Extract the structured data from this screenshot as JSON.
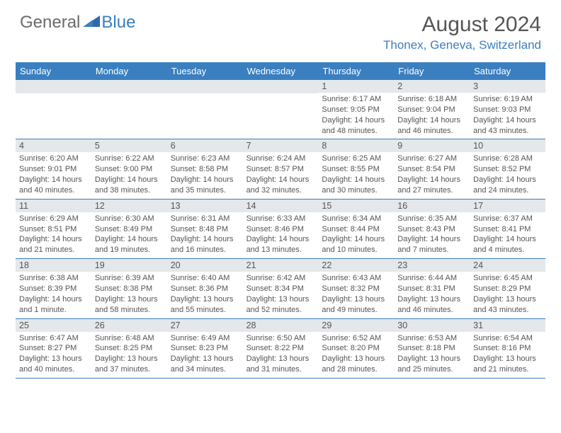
{
  "logo": {
    "general": "General",
    "blue": "Blue"
  },
  "header": {
    "month": "August 2024",
    "location": "Thonex, Geneva, Switzerland"
  },
  "weekdays": [
    "Sunday",
    "Monday",
    "Tuesday",
    "Wednesday",
    "Thursday",
    "Friday",
    "Saturday"
  ],
  "colors": {
    "accent": "#3a7fc0",
    "daynum_bg": "#e4e8eb",
    "text": "#555555",
    "logo_gray": "#6b6b6b"
  },
  "weeks": [
    [
      null,
      null,
      null,
      null,
      {
        "n": "1",
        "sr": "6:17 AM",
        "ss": "9:05 PM",
        "dl": "14 hours and 48 minutes."
      },
      {
        "n": "2",
        "sr": "6:18 AM",
        "ss": "9:04 PM",
        "dl": "14 hours and 46 minutes."
      },
      {
        "n": "3",
        "sr": "6:19 AM",
        "ss": "9:03 PM",
        "dl": "14 hours and 43 minutes."
      }
    ],
    [
      {
        "n": "4",
        "sr": "6:20 AM",
        "ss": "9:01 PM",
        "dl": "14 hours and 40 minutes."
      },
      {
        "n": "5",
        "sr": "6:22 AM",
        "ss": "9:00 PM",
        "dl": "14 hours and 38 minutes."
      },
      {
        "n": "6",
        "sr": "6:23 AM",
        "ss": "8:58 PM",
        "dl": "14 hours and 35 minutes."
      },
      {
        "n": "7",
        "sr": "6:24 AM",
        "ss": "8:57 PM",
        "dl": "14 hours and 32 minutes."
      },
      {
        "n": "8",
        "sr": "6:25 AM",
        "ss": "8:55 PM",
        "dl": "14 hours and 30 minutes."
      },
      {
        "n": "9",
        "sr": "6:27 AM",
        "ss": "8:54 PM",
        "dl": "14 hours and 27 minutes."
      },
      {
        "n": "10",
        "sr": "6:28 AM",
        "ss": "8:52 PM",
        "dl": "14 hours and 24 minutes."
      }
    ],
    [
      {
        "n": "11",
        "sr": "6:29 AM",
        "ss": "8:51 PM",
        "dl": "14 hours and 21 minutes."
      },
      {
        "n": "12",
        "sr": "6:30 AM",
        "ss": "8:49 PM",
        "dl": "14 hours and 19 minutes."
      },
      {
        "n": "13",
        "sr": "6:31 AM",
        "ss": "8:48 PM",
        "dl": "14 hours and 16 minutes."
      },
      {
        "n": "14",
        "sr": "6:33 AM",
        "ss": "8:46 PM",
        "dl": "14 hours and 13 minutes."
      },
      {
        "n": "15",
        "sr": "6:34 AM",
        "ss": "8:44 PM",
        "dl": "14 hours and 10 minutes."
      },
      {
        "n": "16",
        "sr": "6:35 AM",
        "ss": "8:43 PM",
        "dl": "14 hours and 7 minutes."
      },
      {
        "n": "17",
        "sr": "6:37 AM",
        "ss": "8:41 PM",
        "dl": "14 hours and 4 minutes."
      }
    ],
    [
      {
        "n": "18",
        "sr": "6:38 AM",
        "ss": "8:39 PM",
        "dl": "14 hours and 1 minute."
      },
      {
        "n": "19",
        "sr": "6:39 AM",
        "ss": "8:38 PM",
        "dl": "13 hours and 58 minutes."
      },
      {
        "n": "20",
        "sr": "6:40 AM",
        "ss": "8:36 PM",
        "dl": "13 hours and 55 minutes."
      },
      {
        "n": "21",
        "sr": "6:42 AM",
        "ss": "8:34 PM",
        "dl": "13 hours and 52 minutes."
      },
      {
        "n": "22",
        "sr": "6:43 AM",
        "ss": "8:32 PM",
        "dl": "13 hours and 49 minutes."
      },
      {
        "n": "23",
        "sr": "6:44 AM",
        "ss": "8:31 PM",
        "dl": "13 hours and 46 minutes."
      },
      {
        "n": "24",
        "sr": "6:45 AM",
        "ss": "8:29 PM",
        "dl": "13 hours and 43 minutes."
      }
    ],
    [
      {
        "n": "25",
        "sr": "6:47 AM",
        "ss": "8:27 PM",
        "dl": "13 hours and 40 minutes."
      },
      {
        "n": "26",
        "sr": "6:48 AM",
        "ss": "8:25 PM",
        "dl": "13 hours and 37 minutes."
      },
      {
        "n": "27",
        "sr": "6:49 AM",
        "ss": "8:23 PM",
        "dl": "13 hours and 34 minutes."
      },
      {
        "n": "28",
        "sr": "6:50 AM",
        "ss": "8:22 PM",
        "dl": "13 hours and 31 minutes."
      },
      {
        "n": "29",
        "sr": "6:52 AM",
        "ss": "8:20 PM",
        "dl": "13 hours and 28 minutes."
      },
      {
        "n": "30",
        "sr": "6:53 AM",
        "ss": "8:18 PM",
        "dl": "13 hours and 25 minutes."
      },
      {
        "n": "31",
        "sr": "6:54 AM",
        "ss": "8:16 PM",
        "dl": "13 hours and 21 minutes."
      }
    ]
  ],
  "labels": {
    "sunrise": "Sunrise: ",
    "sunset": "Sunset: ",
    "daylight": "Daylight: "
  }
}
